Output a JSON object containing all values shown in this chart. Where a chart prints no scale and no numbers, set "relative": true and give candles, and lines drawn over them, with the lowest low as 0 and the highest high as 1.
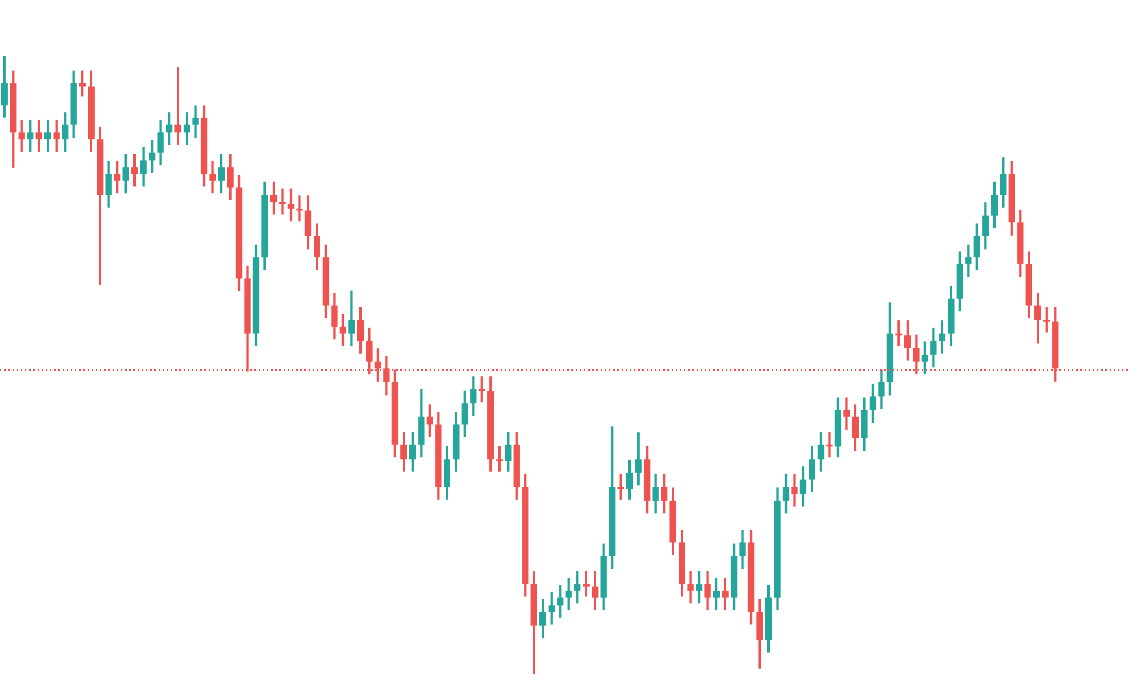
{
  "chart_data": {
    "type": "candlestick",
    "relative": true,
    "colors": [
      "#26a69a",
      "#ef5350",
      "#ef5350",
      "#26a69a",
      "#ef5350",
      "#26a69a",
      "#ef5350",
      "#26a69a",
      "#26a69a",
      "#ef5350",
      "#ef5350",
      "#ef5350",
      "#26a69a",
      "#ef5350",
      "#26a69a",
      "#ef5350",
      "#26a69a",
      "#26a69a",
      "#26a69a",
      "#26a69a",
      "#ef5350",
      "#26a69a",
      "#26a69a",
      "#ef5350",
      "#ef5350",
      "#26a69a",
      "#ef5350",
      "#ef5350",
      "#ef5350",
      "#26a69a",
      "#26a69a",
      "#ef5350",
      "#ef5350",
      "#ef5350",
      "#ef5350",
      "#ef5350",
      "#ef5350",
      "#ef5350",
      "#ef5350",
      "#ef5350",
      "#26a69a",
      "#ef5350",
      "#ef5350",
      "#ef5350",
      "#ef5350",
      "#ef5350",
      "#ef5350",
      "#26a69a",
      "#26a69a",
      "#ef5350",
      "#ef5350",
      "#26a69a",
      "#26a69a",
      "#26a69a",
      "#26a69a",
      "#ef5350",
      "#ef5350",
      "#ef5350",
      "#26a69a",
      "#ef5350",
      "#ef5350",
      "#ef5350",
      "#26a69a",
      "#26a69a",
      "#26a69a",
      "#26a69a",
      "#26a69a",
      "#ef5350",
      "#ef5350",
      "#26a69a",
      "#26a69a",
      "#ef5350",
      "#26a69a",
      "#26a69a",
      "#ef5350",
      "#26a69a",
      "#ef5350",
      "#ef5350",
      "#ef5350",
      "#ef5350",
      "#26a69a",
      "#ef5350",
      "#26a69a",
      "#ef5350",
      "#26a69a",
      "#26a69a",
      "#ef5350",
      "#ef5350",
      "#26a69a",
      "#26a69a",
      "#26a69a",
      "#ef5350",
      "#26a69a",
      "#26a69a",
      "#26a69a",
      "#ef5350",
      "#26a69a",
      "#ef5350",
      "#ef5350",
      "#26a69a",
      "#26a69a",
      "#26a69a",
      "#26a69a",
      "#ef5350",
      "#ef5350",
      "#ef5350",
      "#26a69a",
      "#26a69a",
      "#26a69a",
      "#26a69a",
      "#26a69a",
      "#26a69a",
      "#26a69a",
      "#26a69a",
      "#26a69a",
      "#26a69a",
      "#ef5350",
      "#ef5350",
      "#ef5350",
      "#ef5350",
      "#ef5350",
      "#ef5350"
    ],
    "categories": [
      null,
      null,
      null,
      null,
      null,
      null,
      null,
      null,
      null,
      null,
      null,
      null,
      null,
      null,
      null,
      null,
      null,
      null,
      null,
      null,
      null,
      null,
      null,
      null,
      null,
      null,
      null,
      null,
      null,
      null,
      null,
      null,
      null,
      null,
      null,
      null,
      null,
      null,
      null,
      null,
      null,
      null,
      null,
      null,
      null,
      null,
      null,
      null,
      null,
      null,
      null,
      null,
      null,
      null,
      null,
      null,
      null,
      null,
      null,
      null,
      null,
      null,
      null,
      null,
      null,
      null,
      null,
      null,
      null,
      null,
      null,
      null,
      null,
      null,
      null,
      null,
      null,
      null,
      null,
      null,
      null,
      null,
      null,
      null,
      null,
      null,
      null,
      null,
      null,
      null,
      null,
      null,
      null,
      null,
      null,
      null,
      null,
      null,
      null,
      null,
      null,
      null,
      null,
      null,
      null,
      null,
      null,
      null,
      null,
      null,
      null,
      null,
      null,
      null,
      null,
      null,
      null,
      null,
      null,
      null,
      null,
      null
    ],
    "ohlc": [
      [
        0.92,
        1.0,
        0.9,
        0.955
      ],
      [
        0.955,
        0.975,
        0.82,
        0.876
      ],
      [
        0.876,
        0.896,
        0.845,
        0.865
      ],
      [
        0.865,
        0.896,
        0.845,
        0.876
      ],
      [
        0.876,
        0.896,
        0.845,
        0.865
      ],
      [
        0.865,
        0.896,
        0.845,
        0.876
      ],
      [
        0.876,
        0.896,
        0.845,
        0.865
      ],
      [
        0.865,
        0.908,
        0.845,
        0.888
      ],
      [
        0.888,
        0.975,
        0.868,
        0.955
      ],
      [
        0.955,
        0.975,
        0.935,
        0.95
      ],
      [
        0.95,
        0.975,
        0.845,
        0.865
      ],
      [
        0.865,
        0.885,
        0.63,
        0.775
      ],
      [
        0.775,
        0.829,
        0.755,
        0.809
      ],
      [
        0.809,
        0.829,
        0.778,
        0.798
      ],
      [
        0.798,
        0.84,
        0.778,
        0.82
      ],
      [
        0.82,
        0.84,
        0.789,
        0.809
      ],
      [
        0.809,
        0.851,
        0.789,
        0.831
      ],
      [
        0.831,
        0.863,
        0.811,
        0.843
      ],
      [
        0.843,
        0.896,
        0.823,
        0.876
      ],
      [
        0.876,
        0.908,
        0.856,
        0.888
      ],
      [
        0.888,
        0.98,
        0.856,
        0.876
      ],
      [
        0.876,
        0.908,
        0.856,
        0.888
      ],
      [
        0.888,
        0.919,
        0.868,
        0.899
      ],
      [
        0.899,
        0.919,
        0.789,
        0.809
      ],
      [
        0.809,
        0.829,
        0.778,
        0.798
      ],
      [
        0.798,
        0.84,
        0.778,
        0.82
      ],
      [
        0.82,
        0.84,
        0.767,
        0.787
      ],
      [
        0.787,
        0.807,
        0.62,
        0.64
      ],
      [
        0.64,
        0.66,
        0.49,
        0.551
      ],
      [
        0.551,
        0.694,
        0.531,
        0.674
      ],
      [
        0.674,
        0.795,
        0.654,
        0.775
      ],
      [
        0.775,
        0.795,
        0.744,
        0.764
      ],
      [
        0.764,
        0.784,
        0.744,
        0.76
      ],
      [
        0.76,
        0.784,
        0.733,
        0.753
      ],
      [
        0.753,
        0.773,
        0.733,
        0.75
      ],
      [
        0.75,
        0.773,
        0.688,
        0.708
      ],
      [
        0.708,
        0.728,
        0.654,
        0.674
      ],
      [
        0.674,
        0.694,
        0.576,
        0.596
      ],
      [
        0.596,
        0.616,
        0.542,
        0.562
      ],
      [
        0.562,
        0.582,
        0.531,
        0.551
      ],
      [
        0.551,
        0.62,
        0.531,
        0.573
      ],
      [
        0.573,
        0.593,
        0.519,
        0.539
      ],
      [
        0.539,
        0.559,
        0.486,
        0.506
      ],
      [
        0.506,
        0.526,
        0.474,
        0.494
      ],
      [
        0.494,
        0.514,
        0.452,
        0.472
      ],
      [
        0.472,
        0.492,
        0.351,
        0.371
      ],
      [
        0.371,
        0.391,
        0.328,
        0.348
      ],
      [
        0.348,
        0.391,
        0.328,
        0.371
      ],
      [
        0.371,
        0.46,
        0.351,
        0.416
      ],
      [
        0.416,
        0.436,
        0.384,
        0.404
      ],
      [
        0.404,
        0.424,
        0.283,
        0.303
      ],
      [
        0.303,
        0.368,
        0.283,
        0.348
      ],
      [
        0.348,
        0.424,
        0.328,
        0.404
      ],
      [
        0.404,
        0.458,
        0.384,
        0.438
      ],
      [
        0.438,
        0.481,
        0.418,
        0.461
      ],
      [
        0.461,
        0.481,
        0.441,
        0.458
      ],
      [
        0.458,
        0.481,
        0.328,
        0.348
      ],
      [
        0.348,
        0.368,
        0.328,
        0.345
      ],
      [
        0.345,
        0.391,
        0.328,
        0.371
      ],
      [
        0.371,
        0.391,
        0.283,
        0.303
      ],
      [
        0.303,
        0.323,
        0.126,
        0.146
      ],
      [
        0.146,
        0.166,
        0.0,
        0.079
      ],
      [
        0.079,
        0.121,
        0.059,
        0.101
      ],
      [
        0.101,
        0.132,
        0.081,
        0.112
      ],
      [
        0.112,
        0.144,
        0.092,
        0.124
      ],
      [
        0.124,
        0.155,
        0.104,
        0.135
      ],
      [
        0.135,
        0.166,
        0.115,
        0.146
      ],
      [
        0.146,
        0.166,
        0.126,
        0.142
      ],
      [
        0.142,
        0.166,
        0.104,
        0.124
      ],
      [
        0.124,
        0.211,
        0.104,
        0.191
      ],
      [
        0.191,
        0.4,
        0.171,
        0.303
      ],
      [
        0.303,
        0.323,
        0.283,
        0.3
      ],
      [
        0.3,
        0.346,
        0.283,
        0.326
      ],
      [
        0.326,
        0.39,
        0.306,
        0.348
      ],
      [
        0.348,
        0.368,
        0.261,
        0.281
      ],
      [
        0.281,
        0.323,
        0.261,
        0.303
      ],
      [
        0.303,
        0.323,
        0.261,
        0.281
      ],
      [
        0.281,
        0.301,
        0.193,
        0.213
      ],
      [
        0.213,
        0.233,
        0.126,
        0.146
      ],
      [
        0.146,
        0.166,
        0.115,
        0.135
      ],
      [
        0.135,
        0.166,
        0.115,
        0.146
      ],
      [
        0.146,
        0.166,
        0.104,
        0.124
      ],
      [
        0.124,
        0.155,
        0.104,
        0.135
      ],
      [
        0.135,
        0.155,
        0.104,
        0.124
      ],
      [
        0.124,
        0.211,
        0.104,
        0.191
      ],
      [
        0.191,
        0.233,
        0.171,
        0.213
      ],
      [
        0.213,
        0.233,
        0.081,
        0.101
      ],
      [
        0.101,
        0.121,
        0.01,
        0.056
      ],
      [
        0.056,
        0.144,
        0.036,
        0.124
      ],
      [
        0.124,
        0.301,
        0.104,
        0.281
      ],
      [
        0.281,
        0.323,
        0.261,
        0.303
      ],
      [
        0.303,
        0.323,
        0.272,
        0.292
      ],
      [
        0.292,
        0.335,
        0.272,
        0.315
      ],
      [
        0.315,
        0.368,
        0.295,
        0.348
      ],
      [
        0.348,
        0.391,
        0.328,
        0.371
      ],
      [
        0.371,
        0.391,
        0.351,
        0.368
      ],
      [
        0.368,
        0.447,
        0.351,
        0.427
      ],
      [
        0.427,
        0.447,
        0.396,
        0.416
      ],
      [
        0.416,
        0.436,
        0.362,
        0.382
      ],
      [
        0.382,
        0.447,
        0.362,
        0.427
      ],
      [
        0.427,
        0.469,
        0.407,
        0.449
      ],
      [
        0.449,
        0.492,
        0.429,
        0.472
      ],
      [
        0.472,
        0.6,
        0.452,
        0.551
      ],
      [
        0.551,
        0.571,
        0.531,
        0.548
      ],
      [
        0.548,
        0.571,
        0.508,
        0.528
      ],
      [
        0.528,
        0.548,
        0.486,
        0.506
      ],
      [
        0.506,
        0.537,
        0.486,
        0.517
      ],
      [
        0.517,
        0.559,
        0.497,
        0.539
      ],
      [
        0.539,
        0.571,
        0.519,
        0.551
      ],
      [
        0.551,
        0.627,
        0.531,
        0.607
      ],
      [
        0.607,
        0.683,
        0.587,
        0.663
      ],
      [
        0.663,
        0.694,
        0.643,
        0.674
      ],
      [
        0.674,
        0.728,
        0.654,
        0.708
      ],
      [
        0.708,
        0.762,
        0.688,
        0.742
      ],
      [
        0.742,
        0.795,
        0.722,
        0.775
      ],
      [
        0.775,
        0.835,
        0.755,
        0.809
      ],
      [
        0.809,
        0.829,
        0.71,
        0.73
      ],
      [
        0.73,
        0.75,
        0.643,
        0.663
      ],
      [
        0.663,
        0.683,
        0.576,
        0.596
      ],
      [
        0.596,
        0.616,
        0.535,
        0.573
      ],
      [
        0.573,
        0.593,
        0.553,
        0.57
      ],
      [
        0.57,
        0.593,
        0.474,
        0.494
      ]
    ],
    "ref_lines": [
      {
        "axis": "y",
        "value": 0.492,
        "color": "#ef5350",
        "line_style": "dotted"
      }
    ]
  }
}
